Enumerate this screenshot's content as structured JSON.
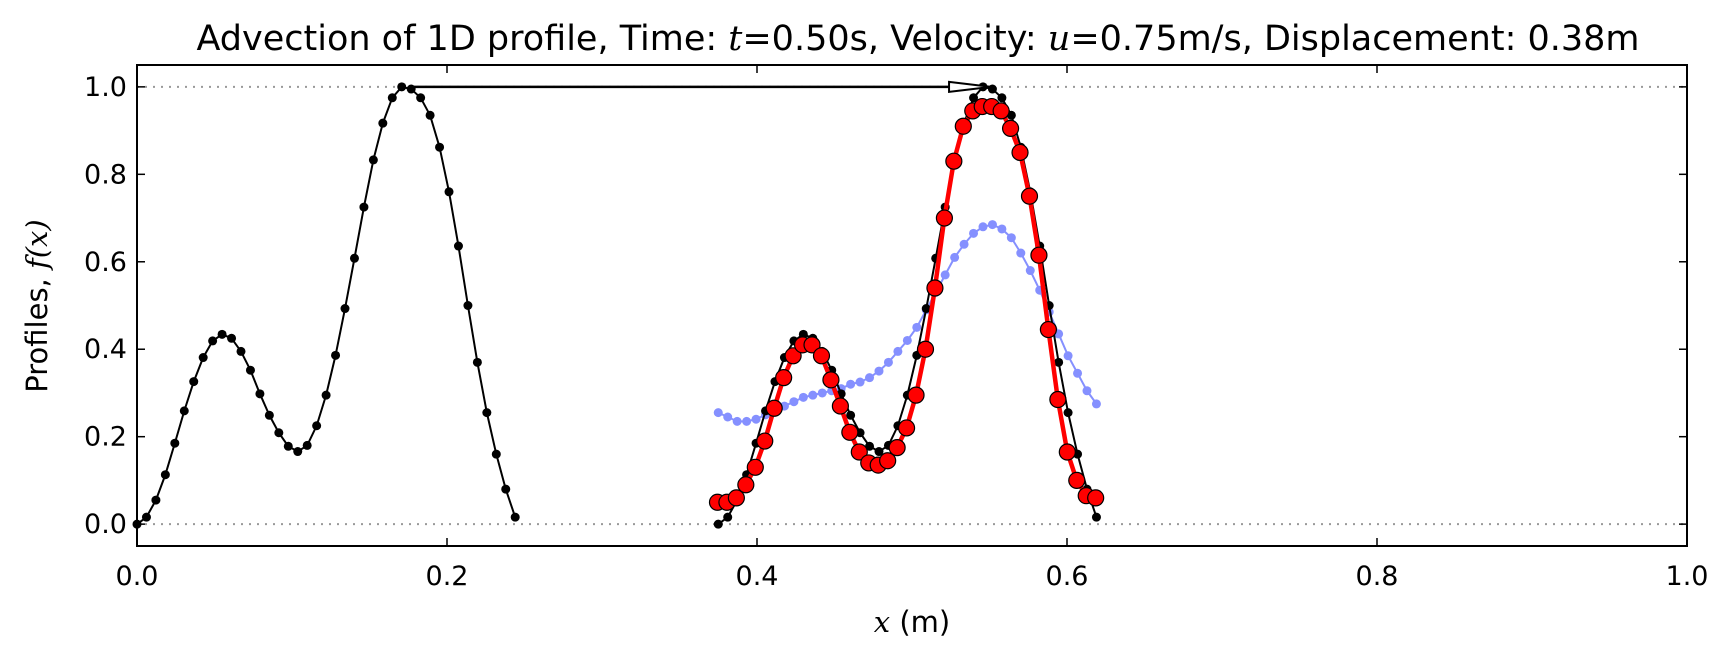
{
  "chart_data": {
    "type": "line",
    "title": {
      "prefix": "Advection of 1D profile, Time: ",
      "time_symbol": "t",
      "time_value": "=0.50s, Velocity: ",
      "velocity_symbol": "u",
      "velocity_value": "=0.75m/s, Displacement: 0.38m"
    },
    "xlabel": {
      "symbol": "x",
      "text": " (m)"
    },
    "ylabel": {
      "text": "Profiles, ",
      "symbol": "f(x)"
    },
    "xlim": [
      0.0,
      1.0
    ],
    "ylim": [
      -0.05,
      1.05
    ],
    "xticks": [
      0.0,
      0.2,
      0.4,
      0.6,
      0.8,
      1.0
    ],
    "xtick_labels": [
      "0.0",
      "0.2",
      "0.4",
      "0.6",
      "0.8",
      "1.0"
    ],
    "yticks": [
      0.0,
      0.2,
      0.4,
      0.6,
      0.8,
      1.0
    ],
    "ytick_labels": [
      "0.0",
      "0.2",
      "0.4",
      "0.6",
      "0.8",
      "1.0"
    ],
    "reference_lines_y": [
      0.0,
      1.0
    ],
    "arrow": {
      "from": [
        0.176,
        1.0
      ],
      "to": [
        0.551,
        1.0
      ]
    },
    "colors": {
      "initial": "#000000",
      "exact": "#000000",
      "numerical": "#ff0000",
      "diffused": "#4455ff",
      "reference": "#999999"
    },
    "series": [
      {
        "role": "initial",
        "x": [
          0.0,
          0.0061,
          0.0122,
          0.0183,
          0.0244,
          0.0305,
          0.0366,
          0.0427,
          0.0488,
          0.0549,
          0.061,
          0.0671,
          0.0732,
          0.0793,
          0.0854,
          0.0915,
          0.0976,
          0.1037,
          0.1098,
          0.1159,
          0.122,
          0.1281,
          0.1342,
          0.1403,
          0.1464,
          0.1525,
          0.1586,
          0.1647,
          0.1708,
          0.1769,
          0.183,
          0.1891,
          0.1952,
          0.2013,
          0.2074,
          0.2135,
          0.2196,
          0.2257,
          0.2318,
          0.2379,
          0.244
        ],
        "y": [
          0.0,
          0.016,
          0.055,
          0.113,
          0.185,
          0.259,
          0.326,
          0.381,
          0.419,
          0.434,
          0.425,
          0.395,
          0.352,
          0.298,
          0.249,
          0.209,
          0.178,
          0.166,
          0.18,
          0.225,
          0.295,
          0.386,
          0.493,
          0.608,
          0.725,
          0.833,
          0.917,
          0.975,
          1.0,
          0.995,
          0.975,
          0.935,
          0.862,
          0.76,
          0.636,
          0.5,
          0.37,
          0.255,
          0.16,
          0.08,
          0.016
        ]
      },
      {
        "role": "exact",
        "x": [
          0.375,
          0.3811,
          0.3872,
          0.3933,
          0.3994,
          0.4055,
          0.4116,
          0.4177,
          0.4238,
          0.4299,
          0.436,
          0.4421,
          0.4482,
          0.4543,
          0.4604,
          0.4665,
          0.4726,
          0.4787,
          0.4848,
          0.4909,
          0.497,
          0.5031,
          0.5092,
          0.5153,
          0.5214,
          0.5275,
          0.5336,
          0.5397,
          0.5458,
          0.5519,
          0.558,
          0.5641,
          0.5702,
          0.5763,
          0.5824,
          0.5885,
          0.5946,
          0.6007,
          0.6068,
          0.6129,
          0.619
        ],
        "y": [
          0.0,
          0.016,
          0.055,
          0.113,
          0.185,
          0.259,
          0.326,
          0.381,
          0.419,
          0.434,
          0.425,
          0.395,
          0.352,
          0.298,
          0.249,
          0.209,
          0.178,
          0.166,
          0.18,
          0.225,
          0.295,
          0.386,
          0.493,
          0.608,
          0.725,
          0.833,
          0.917,
          0.975,
          1.0,
          0.995,
          0.975,
          0.935,
          0.862,
          0.76,
          0.636,
          0.5,
          0.37,
          0.255,
          0.16,
          0.08,
          0.016
        ]
      },
      {
        "role": "numerical",
        "x": [
          0.3745,
          0.3806,
          0.3867,
          0.3928,
          0.3989,
          0.405,
          0.4111,
          0.4172,
          0.4233,
          0.4294,
          0.4355,
          0.4416,
          0.4477,
          0.4538,
          0.4599,
          0.466,
          0.4721,
          0.4782,
          0.4843,
          0.4904,
          0.4965,
          0.5026,
          0.5087,
          0.5148,
          0.5209,
          0.527,
          0.5331,
          0.5392,
          0.5453,
          0.5514,
          0.5575,
          0.5636,
          0.5697,
          0.5758,
          0.5819,
          0.588,
          0.5941,
          0.6002,
          0.6063,
          0.6124,
          0.6185
        ],
        "y": [
          0.05,
          0.05,
          0.06,
          0.09,
          0.13,
          0.19,
          0.265,
          0.335,
          0.385,
          0.41,
          0.41,
          0.385,
          0.33,
          0.27,
          0.21,
          0.165,
          0.14,
          0.135,
          0.145,
          0.175,
          0.22,
          0.295,
          0.4,
          0.54,
          0.7,
          0.83,
          0.91,
          0.945,
          0.955,
          0.955,
          0.945,
          0.905,
          0.85,
          0.75,
          0.615,
          0.445,
          0.285,
          0.165,
          0.1,
          0.065,
          0.06
        ]
      },
      {
        "role": "diffused",
        "x": [
          0.375,
          0.3811,
          0.3872,
          0.3933,
          0.3994,
          0.4055,
          0.4116,
          0.4177,
          0.4238,
          0.4299,
          0.436,
          0.4421,
          0.4482,
          0.4543,
          0.4604,
          0.4665,
          0.4726,
          0.4787,
          0.4848,
          0.4909,
          0.497,
          0.5031,
          0.5092,
          0.5153,
          0.5214,
          0.5275,
          0.5336,
          0.5397,
          0.5458,
          0.5519,
          0.558,
          0.5641,
          0.5702,
          0.5763,
          0.5824,
          0.5885,
          0.5946,
          0.6007,
          0.6068,
          0.6129,
          0.619
        ],
        "y": [
          0.255,
          0.245,
          0.235,
          0.235,
          0.24,
          0.25,
          0.26,
          0.27,
          0.28,
          0.29,
          0.295,
          0.3,
          0.305,
          0.31,
          0.32,
          0.325,
          0.335,
          0.35,
          0.37,
          0.395,
          0.42,
          0.45,
          0.49,
          0.53,
          0.57,
          0.61,
          0.64,
          0.665,
          0.68,
          0.685,
          0.675,
          0.655,
          0.62,
          0.58,
          0.535,
          0.485,
          0.435,
          0.385,
          0.345,
          0.305,
          0.275
        ]
      }
    ]
  }
}
